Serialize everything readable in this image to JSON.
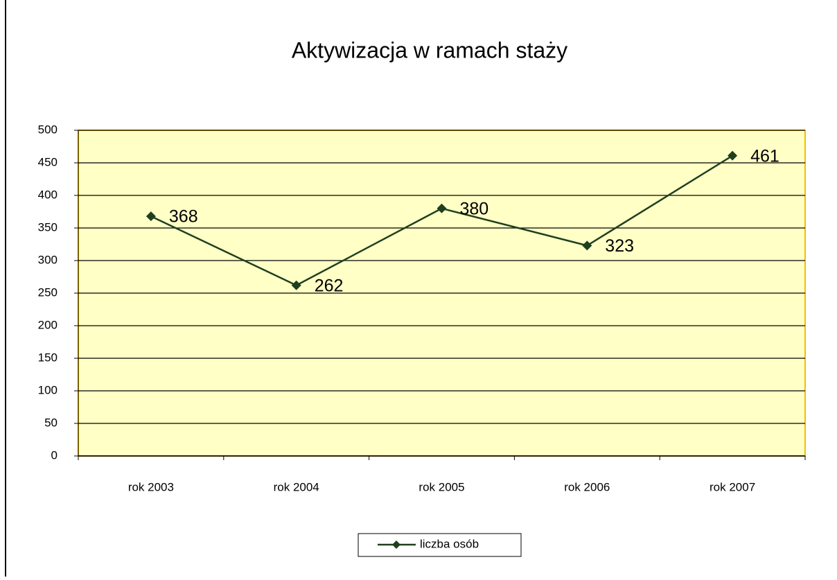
{
  "chart_data": {
    "type": "line",
    "title": "Aktywizacja w ramach staży",
    "categories": [
      "rok 2003",
      "rok 2004",
      "rok 2005",
      "rok 2006",
      "rok 2007"
    ],
    "series": [
      {
        "name": "liczba osób",
        "color": "#1f3f1f",
        "values": [
          368,
          262,
          380,
          323,
          461
        ]
      }
    ],
    "ylim": [
      0,
      500
    ],
    "yticks": [
      0,
      50,
      100,
      150,
      200,
      250,
      300,
      350,
      400,
      450,
      500
    ],
    "grid": true,
    "legend": "bottom"
  }
}
